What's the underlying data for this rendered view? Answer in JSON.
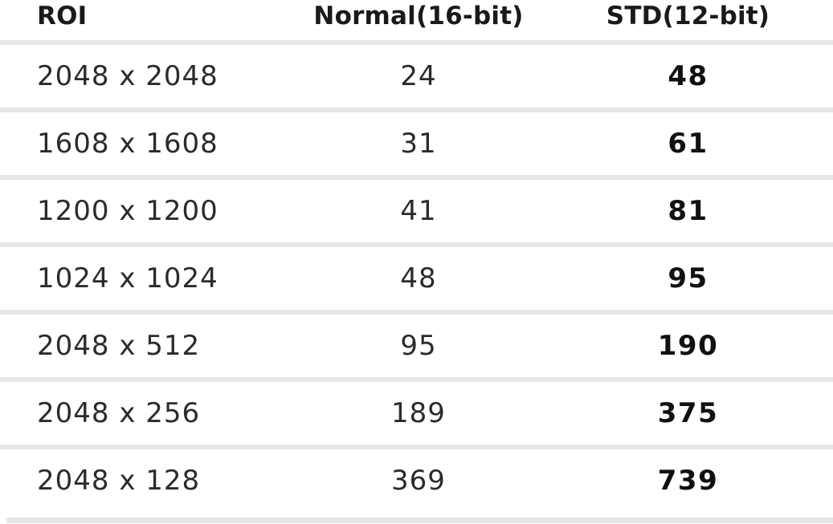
{
  "table": {
    "headers": {
      "roi": "ROI",
      "normal": "Normal(16-bit)",
      "std": "STD(12-bit)"
    },
    "rows": [
      {
        "roi": "2048 x 2048",
        "normal": "24",
        "std": "48"
      },
      {
        "roi": "1608 x 1608",
        "normal": "31",
        "std": "61"
      },
      {
        "roi": "1200 x 1200",
        "normal": "41",
        "std": "81"
      },
      {
        "roi": "1024 x 1024",
        "normal": "48",
        "std": "95"
      },
      {
        "roi": "2048 x 512",
        "normal": "95",
        "std": "190"
      },
      {
        "roi": "2048 x 256",
        "normal": "189",
        "std": "375"
      },
      {
        "roi": "2048 x 128",
        "normal": "369",
        "std": "739"
      }
    ]
  },
  "colors": {
    "background": "#ffffff",
    "separator": "#e6e6e6",
    "text_regular": "#2b2b2b",
    "text_bold": "#111111",
    "text_header": "#1a1a1a"
  },
  "chart_data": {
    "type": "table",
    "columns": [
      "ROI",
      "Normal(16-bit)",
      "STD(12-bit)"
    ],
    "rows": [
      [
        "2048 x 2048",
        24,
        48
      ],
      [
        "1608 x 1608",
        31,
        61
      ],
      [
        "1200 x 1200",
        41,
        81
      ],
      [
        "1024 x 1024",
        48,
        95
      ],
      [
        "2048 x 512",
        95,
        190
      ],
      [
        "2048 x 256",
        189,
        375
      ],
      [
        "2048 x 128",
        369,
        739
      ]
    ]
  }
}
